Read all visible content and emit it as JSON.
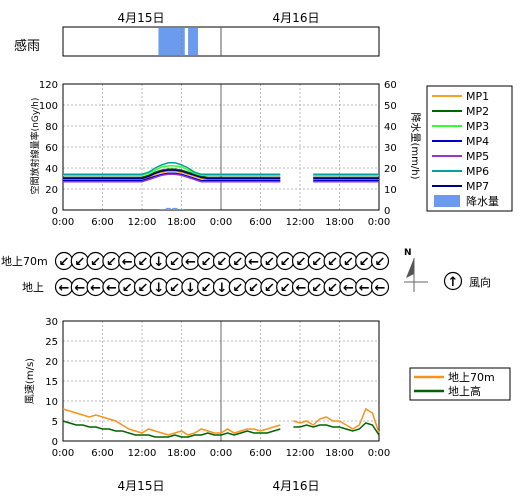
{
  "dates": {
    "day1": "4月15日",
    "day2": "4月16日"
  },
  "rain_panel": {
    "label": "感雨",
    "bands": [
      [
        14.5,
        18.5
      ],
      [
        19.0,
        20.5
      ]
    ]
  },
  "chart_data": [
    {
      "type": "line",
      "ylabel": "空間放射線量率(nGy/h)",
      "y2label": "降水量(mm/h)",
      "ylim": [
        0,
        120
      ],
      "y2lim": [
        0,
        60
      ],
      "yticks": [
        "0",
        "20",
        "40",
        "60",
        "80",
        "100",
        "120"
      ],
      "y2ticks": [
        "0",
        "10",
        "20",
        "30",
        "40",
        "50",
        "60"
      ],
      "xticks": [
        "0:00",
        "6:00",
        "12:00",
        "18:00",
        "0:00",
        "6:00",
        "12:00",
        "18:00",
        "0:00"
      ],
      "xlim_hours": [
        0,
        48
      ],
      "grid": true,
      "legend_position": "right",
      "x_hours": [
        0,
        6,
        12,
        13,
        14,
        15,
        16,
        17,
        18,
        19,
        20,
        21,
        22,
        24,
        30,
        33,
        35,
        38,
        42,
        48
      ],
      "series": [
        {
          "name": "MP1",
          "color": "#f7a21e",
          "values": [
            29,
            29,
            29,
            31,
            34,
            36,
            37,
            37,
            36,
            34,
            32,
            30,
            29,
            29,
            29,
            29,
            null,
            29,
            29,
            29
          ]
        },
        {
          "name": "MP2",
          "color": "#006400",
          "values": [
            31,
            31,
            31,
            33,
            36,
            38,
            39,
            39,
            38,
            36,
            34,
            32,
            31,
            31,
            31,
            31,
            null,
            31,
            31,
            31
          ]
        },
        {
          "name": "MP3",
          "color": "#33ff33",
          "values": [
            33,
            33,
            33,
            35,
            38,
            41,
            42,
            42,
            41,
            38,
            35,
            33,
            33,
            33,
            33,
            33,
            null,
            33,
            33,
            33
          ]
        },
        {
          "name": "MP4",
          "color": "#0000cc",
          "values": [
            28,
            28,
            28,
            30,
            32,
            34,
            35,
            35,
            34,
            32,
            30,
            28,
            28,
            28,
            28,
            28,
            null,
            28,
            28,
            28
          ]
        },
        {
          "name": "MP5",
          "color": "#9933cc",
          "values": [
            27,
            27,
            27,
            29,
            31,
            33,
            34,
            34,
            33,
            31,
            29,
            27,
            27,
            27,
            27,
            27,
            null,
            27,
            27,
            27
          ]
        },
        {
          "name": "MP6",
          "color": "#00a0a0",
          "values": [
            34,
            34,
            34,
            36,
            40,
            43,
            45,
            45,
            43,
            40,
            36,
            34,
            34,
            34,
            34,
            34,
            null,
            34,
            34,
            34
          ]
        },
        {
          "name": "MP7",
          "color": "#000080",
          "values": [
            30,
            30,
            30,
            32,
            35,
            37,
            38,
            38,
            37,
            35,
            33,
            31,
            30,
            30,
            30,
            30,
            null,
            30,
            30,
            30
          ]
        }
      ],
      "bar_series": {
        "name": "降水量",
        "color": "#6b9bef",
        "x_hours": [
          15,
          16,
          17,
          18
        ],
        "values": [
          0.5,
          1.0,
          1.0,
          0.5
        ]
      }
    },
    {
      "type": "line",
      "ylabel": "風速(m/s)",
      "ylim": [
        0,
        30
      ],
      "yticks": [
        "0",
        "5",
        "10",
        "15",
        "20",
        "25",
        "30"
      ],
      "xticks": [
        "0:00",
        "6:00",
        "12:00",
        "18:00",
        "0:00",
        "6:00",
        "12:00",
        "18:00",
        "0:00"
      ],
      "xlim_hours": [
        0,
        48
      ],
      "grid": true,
      "legend_position": "right",
      "x_hours": [
        0,
        1,
        2,
        3,
        4,
        5,
        6,
        7,
        8,
        9,
        10,
        11,
        12,
        13,
        14,
        15,
        16,
        17,
        18,
        19,
        20,
        21,
        22,
        23,
        24,
        25,
        26,
        27,
        28,
        29,
        30,
        31,
        32,
        33,
        34,
        35,
        36,
        37,
        38,
        39,
        40,
        41,
        42,
        43,
        44,
        45,
        46,
        47,
        48
      ],
      "series": [
        {
          "name": "地上70m",
          "color": "#f7931e",
          "values": [
            8,
            7.5,
            7,
            6.5,
            6,
            6.5,
            6,
            5.5,
            5,
            4,
            3,
            2.5,
            2,
            3,
            2.5,
            2,
            1.5,
            2,
            2.5,
            1.5,
            2,
            3,
            2.5,
            2,
            2,
            3,
            2,
            2.5,
            3,
            3,
            2.5,
            3,
            3.5,
            4,
            null,
            5,
            4.5,
            5,
            4,
            5.5,
            6,
            5,
            5,
            4,
            3,
            4,
            8,
            7,
            2
          ]
        },
        {
          "name": "地上高",
          "color": "#006400",
          "values": [
            5,
            4.5,
            4,
            4,
            3.5,
            3.5,
            3,
            3,
            2.5,
            2.5,
            2,
            1.5,
            1.5,
            1.5,
            1,
            1,
            1,
            1.5,
            1,
            1,
            1.5,
            1.5,
            2,
            1.5,
            1.5,
            2,
            1.5,
            2,
            2.5,
            2,
            2,
            2,
            2.5,
            3,
            null,
            3.5,
            3.5,
            4,
            3.5,
            4,
            4,
            3.5,
            3.5,
            3,
            2.5,
            3,
            4.5,
            4,
            1.5
          ]
        }
      ]
    }
  ],
  "wind_direction": {
    "rows": [
      {
        "label": "地上70m",
        "arrows": [
          "↙",
          "↙",
          "↙",
          "↙",
          "←",
          "↙",
          "↓",
          "↙",
          "←",
          "↙",
          "↙",
          "↙",
          "←",
          "↙",
          "↙",
          "↙",
          "↙",
          "↙",
          "↙",
          "↙",
          "↙"
        ]
      },
      {
        "label": "地上",
        "arrows": [
          "←",
          "←",
          "←",
          "←",
          "↙",
          "↙",
          "↓",
          "↙",
          "↓",
          "↙",
          "↓",
          "↙",
          "↙",
          "↙",
          "↙",
          "←",
          "↙",
          "↙",
          "←",
          "←",
          "←"
        ]
      }
    ],
    "north_label": "N",
    "legend_label": "風向",
    "legend_arrow": "↑"
  }
}
